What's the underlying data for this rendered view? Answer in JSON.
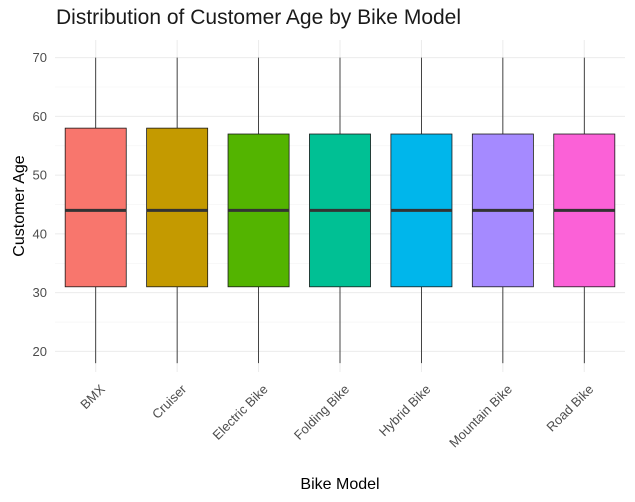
{
  "chart_data": {
    "type": "boxplot",
    "title": "Distribution of Customer Age by Bike Model",
    "xlabel": "Bike Model",
    "ylabel": "Customer Age",
    "ylim": [
      16.5,
      73
    ],
    "yticks": [
      20,
      30,
      40,
      50,
      60,
      70
    ],
    "grid": true,
    "legend": "none",
    "categories": [
      "BMX",
      "Cruiser",
      "Electric Bike",
      "Folding Bike",
      "Hybrid Bike",
      "Mountain Bike",
      "Road Bike"
    ],
    "series": [
      {
        "category": "BMX",
        "min": 18,
        "q1": 31,
        "median": 44,
        "q3": 58,
        "max": 70,
        "color": "#F8766D"
      },
      {
        "category": "Cruiser",
        "min": 18,
        "q1": 31,
        "median": 44,
        "q3": 58,
        "max": 70,
        "color": "#C49A00"
      },
      {
        "category": "Electric Bike",
        "min": 18,
        "q1": 31,
        "median": 44,
        "q3": 57,
        "max": 70,
        "color": "#53B400"
      },
      {
        "category": "Folding Bike",
        "min": 18,
        "q1": 31,
        "median": 44,
        "q3": 57,
        "max": 70,
        "color": "#00C094"
      },
      {
        "category": "Hybrid Bike",
        "min": 18,
        "q1": 31,
        "median": 44,
        "q3": 57,
        "max": 70,
        "color": "#00B6EB"
      },
      {
        "category": "Mountain Bike",
        "min": 18,
        "q1": 31,
        "median": 44,
        "q3": 57,
        "max": 70,
        "color": "#A58AFF"
      },
      {
        "category": "Road Bike",
        "min": 18,
        "q1": 31,
        "median": 44,
        "q3": 57,
        "max": 70,
        "color": "#FB61D7"
      }
    ]
  }
}
